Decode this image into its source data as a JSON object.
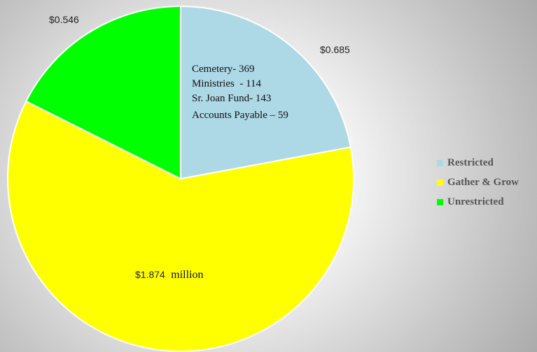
{
  "chart_data": {
    "type": "pie",
    "title": "",
    "slices": [
      {
        "name": "Restricted",
        "value": 0.685,
        "label": "$0.685",
        "color": "#add8e6"
      },
      {
        "name": "Gather & Grow",
        "value": 1.874,
        "label": "$1.874",
        "color": "#ffff00"
      },
      {
        "name": "Unrestricted",
        "value": 0.546,
        "label": "$0.546",
        "color": "#00ff00"
      }
    ],
    "main_label_suffix": "million",
    "annotation": [
      "Cemetery- 369",
      "Ministries  - 114",
      "Sr. Joan Fund- 143",
      "Accounts Payable – 59"
    ],
    "legend": {
      "position": "right",
      "entries": [
        "Restricted",
        "Gather & Grow",
        "Unrestricted"
      ]
    },
    "start_angle": "12 o'clock",
    "direction": "clockwise"
  }
}
